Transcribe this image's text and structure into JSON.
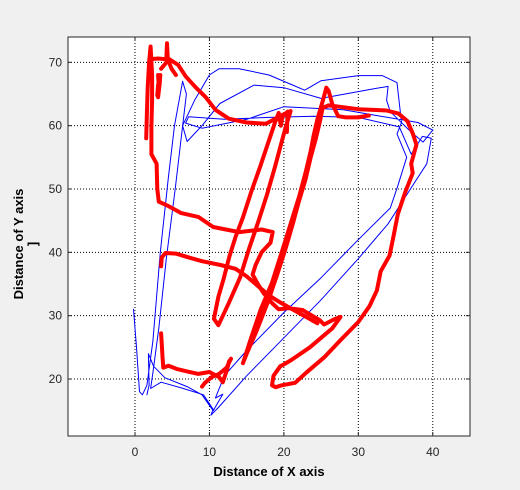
{
  "chart_data": {
    "type": "line",
    "title": "",
    "xlabel": "Distance of X axis",
    "ylabel": "Distance of Y axis",
    "ylabel_extra": "]",
    "xlim": [
      -9,
      45
    ],
    "ylim": [
      11,
      74
    ],
    "xticks": [
      0,
      10,
      20,
      30,
      40
    ],
    "yticks": [
      20,
      30,
      40,
      50,
      60,
      70
    ],
    "grid": true,
    "legend": "none",
    "series": [
      {
        "color": "#0000ff",
        "width": 1,
        "points": [
          [
            -0.2,
            31
          ],
          [
            0.2,
            25
          ],
          [
            0.6,
            18
          ],
          [
            1,
            17.5
          ],
          [
            1.6,
            19
          ],
          [
            2.4,
            26
          ],
          [
            3.4,
            40
          ],
          [
            4.5,
            52
          ],
          [
            5.3,
            60
          ],
          [
            6.4,
            67
          ],
          [
            6.9,
            65
          ],
          [
            6.3,
            59
          ],
          [
            5.4,
            50
          ],
          [
            4.2,
            39
          ],
          [
            3.2,
            28
          ],
          [
            2.4,
            21
          ],
          [
            2.1,
            18.5
          ],
          [
            3.5,
            19.5
          ],
          [
            6.5,
            18.5
          ],
          [
            9.2,
            17.5
          ],
          [
            10.5,
            15.2
          ],
          [
            10.2,
            14.3
          ],
          [
            11.2,
            15.5
          ],
          [
            15,
            20.5
          ],
          [
            20,
            26.5
          ],
          [
            25,
            32.5
          ],
          [
            30,
            39
          ],
          [
            34,
            44.5
          ],
          [
            37,
            50
          ],
          [
            39.2,
            54
          ],
          [
            39.8,
            58
          ],
          [
            38.6,
            58.3
          ],
          [
            37.1,
            55.5
          ],
          [
            35.5,
            59.8
          ],
          [
            30,
            61.3
          ],
          [
            24,
            61.5
          ],
          [
            18,
            61.3
          ],
          [
            12,
            61
          ],
          [
            7.2,
            61.4
          ],
          [
            6.8,
            60.4
          ],
          [
            9,
            59.6
          ],
          [
            15,
            61
          ],
          [
            20,
            63
          ],
          [
            28,
            62.5
          ],
          [
            33,
            61.5
          ],
          [
            38,
            60.5
          ],
          [
            40,
            59.3
          ],
          [
            38.7,
            57.4
          ],
          [
            36.9,
            59.2
          ],
          [
            34.3,
            62.2
          ],
          [
            33.8,
            64
          ],
          [
            34,
            66.2
          ],
          [
            32,
            65.8
          ],
          [
            25,
            64.3
          ],
          [
            20,
            66
          ],
          [
            16,
            66.4
          ],
          [
            11.4,
            63.5
          ],
          [
            9,
            60
          ],
          [
            7,
            57.5
          ],
          [
            6.4,
            60
          ],
          [
            8,
            64
          ],
          [
            10,
            68
          ],
          [
            11.3,
            69
          ],
          [
            14,
            69
          ],
          [
            18,
            68
          ],
          [
            21,
            66.5
          ],
          [
            22.8,
            65.6
          ],
          [
            25,
            67.1
          ],
          [
            30,
            67.9
          ],
          [
            33.2,
            67.9
          ],
          [
            35.2,
            66.8
          ],
          [
            35.8,
            60.5
          ],
          [
            35.2,
            58.7
          ],
          [
            36.5,
            55
          ],
          [
            35.3,
            50.5
          ],
          [
            34.3,
            47
          ],
          [
            30,
            42
          ],
          [
            25,
            36
          ],
          [
            20,
            30.5
          ],
          [
            15,
            24.5
          ],
          [
            12,
            20.5
          ],
          [
            10.8,
            17
          ],
          [
            11.8,
            17.6
          ],
          [
            10.5,
            15
          ],
          [
            9,
            17.5
          ],
          [
            7,
            18.8
          ],
          [
            4,
            20.2
          ],
          [
            2.5,
            22
          ],
          [
            1.8,
            24
          ],
          [
            1.9,
            19
          ],
          [
            1.6,
            17.5
          ]
        ]
      },
      {
        "color": "#ff0000",
        "width": 4,
        "points": [
          [
            1.5,
            58
          ],
          [
            1.6,
            62
          ],
          [
            1.7,
            66
          ],
          [
            1.9,
            70
          ],
          [
            2.1,
            72.5
          ],
          [
            2.3,
            68
          ],
          [
            2.3,
            64
          ],
          [
            2.2,
            60
          ],
          [
            2.2,
            55.5
          ],
          [
            2.9,
            54
          ],
          [
            3,
            50
          ],
          [
            3.2,
            48
          ],
          [
            4.5,
            47.3
          ],
          [
            6.2,
            46.2
          ],
          [
            8.5,
            45.6
          ],
          [
            10.5,
            44
          ],
          [
            14,
            43.2
          ],
          [
            17,
            43.6
          ],
          [
            18.5,
            43.2
          ],
          [
            18.2,
            41.5
          ],
          [
            17,
            40
          ],
          [
            16.2,
            38
          ],
          [
            15.8,
            36.5
          ],
          [
            16.5,
            35
          ],
          [
            17.3,
            33.5
          ],
          [
            18.4,
            32
          ],
          [
            19.3,
            31
          ],
          [
            20.5,
            31.2
          ],
          [
            22.5,
            30.9
          ],
          [
            24.8,
            29.3
          ],
          [
            25.4,
            28.6
          ],
          [
            26.7,
            29.4
          ],
          [
            27.6,
            29.8
          ],
          [
            26.5,
            28
          ],
          [
            25,
            26.5
          ],
          [
            23.5,
            25
          ],
          [
            21,
            23
          ],
          [
            20,
            22.3
          ],
          [
            19.5,
            22
          ],
          [
            18.6,
            20.5
          ],
          [
            18.4,
            19
          ],
          [
            18.9,
            18.7
          ],
          [
            19.7,
            19
          ],
          [
            21.5,
            19.4
          ],
          [
            23,
            21
          ],
          [
            25.5,
            23.5
          ],
          [
            27.5,
            26
          ],
          [
            30,
            29
          ],
          [
            31.5,
            31.5
          ],
          [
            32.5,
            34
          ],
          [
            33,
            37
          ],
          [
            34.2,
            39.5
          ],
          [
            34.8,
            43
          ],
          [
            35.3,
            46
          ],
          [
            36.3,
            49.5
          ],
          [
            37.3,
            52.5
          ],
          [
            37.1,
            54
          ],
          [
            37.8,
            57
          ],
          [
            37.3,
            58.8
          ],
          [
            36.6,
            60.7
          ],
          [
            35.4,
            61.9
          ],
          [
            33.8,
            62.4
          ],
          [
            30,
            62.6
          ],
          [
            26,
            63.2
          ],
          [
            25.2,
            62.8
          ],
          [
            24.9,
            61
          ],
          [
            24.3,
            58
          ],
          [
            23.6,
            55
          ],
          [
            22.9,
            51.5
          ],
          [
            22,
            48
          ],
          [
            21.2,
            44.5
          ],
          [
            20.2,
            40.5
          ],
          [
            19.1,
            36.5
          ],
          [
            17.8,
            32
          ],
          [
            16.3,
            27.5
          ],
          [
            15,
            24
          ],
          [
            14.5,
            22.5
          ],
          [
            14.7,
            23.2
          ],
          [
            15.6,
            26.5
          ],
          [
            16.9,
            31
          ],
          [
            18.4,
            35.2
          ],
          [
            19.7,
            40
          ],
          [
            20.9,
            44.5
          ],
          [
            22.1,
            49
          ],
          [
            23,
            53
          ],
          [
            23.6,
            56
          ],
          [
            24,
            58.5
          ],
          [
            24.5,
            61
          ],
          [
            25.3,
            64.2
          ],
          [
            25.7,
            66
          ],
          [
            26,
            65.5
          ],
          [
            26.5,
            63.4
          ],
          [
            27.3,
            61.5
          ],
          [
            28.3,
            61.3
          ],
          [
            30,
            61.3
          ],
          [
            31.4,
            61.6
          ]
        ]
      },
      {
        "color": "#ff0000",
        "width": 4,
        "points": [
          [
            3.5,
            69
          ],
          [
            4.6,
            70.5
          ],
          [
            5.8,
            69.6
          ],
          [
            6.8,
            67.8
          ],
          [
            8.2,
            66
          ],
          [
            9.5,
            64.5
          ],
          [
            10.8,
            62.5
          ],
          [
            12.6,
            61.1
          ],
          [
            15,
            60.5
          ],
          [
            17.6,
            60.3
          ],
          [
            19.8,
            61.7
          ],
          [
            20.9,
            62.3
          ],
          [
            20.3,
            60
          ],
          [
            19.6,
            57
          ],
          [
            18.8,
            53.5
          ],
          [
            17.7,
            49
          ],
          [
            16.6,
            45
          ],
          [
            15.3,
            40.5
          ],
          [
            14.1,
            36
          ],
          [
            12.6,
            32
          ],
          [
            11.2,
            28.5
          ],
          [
            10.6,
            29.5
          ],
          [
            11.2,
            33
          ],
          [
            11.9,
            35.8
          ],
          [
            12.7,
            39.4
          ],
          [
            13.5,
            42.4
          ],
          [
            14.5,
            45.5
          ],
          [
            15.6,
            49.5
          ],
          [
            16.8,
            53.5
          ],
          [
            17.8,
            57
          ],
          [
            18.8,
            60.5
          ],
          [
            19.3,
            62
          ],
          [
            19.6,
            60
          ],
          [
            19.8,
            61.5
          ],
          [
            20.5,
            62.2
          ],
          [
            20.4,
            59
          ]
        ]
      },
      {
        "color": "#ff0000",
        "width": 4,
        "points": [
          [
            2,
            70.5
          ],
          [
            3.1,
            70.6
          ],
          [
            4.2,
            70.5
          ],
          [
            4.3,
            73
          ],
          [
            4.4,
            70.5
          ],
          [
            4.9,
            69
          ],
          [
            5.5,
            68
          ]
        ]
      },
      {
        "color": "#ff0000",
        "width": 4,
        "points": [
          [
            3.5,
            37.8
          ],
          [
            3.6,
            39.2
          ],
          [
            4.1,
            39.9
          ],
          [
            5.5,
            39.8
          ],
          [
            7.2,
            39.2
          ],
          [
            9,
            38.6
          ],
          [
            11.5,
            38
          ],
          [
            13.5,
            37.4
          ],
          [
            15,
            36.2
          ],
          [
            16.7,
            34.5
          ],
          [
            18,
            33.2
          ],
          [
            19.5,
            32.1
          ],
          [
            21.3,
            30.9
          ],
          [
            23.3,
            29.6
          ],
          [
            24.5,
            28.8
          ]
        ]
      },
      {
        "color": "#ff0000",
        "width": 4,
        "points": [
          [
            3.5,
            27.2
          ],
          [
            3.6,
            25.5
          ],
          [
            3.7,
            23.5
          ],
          [
            3.8,
            21.8
          ],
          [
            4.5,
            22.1
          ],
          [
            5.6,
            21.6
          ],
          [
            7,
            21.2
          ],
          [
            8.5,
            20.8
          ],
          [
            10,
            21.1
          ],
          [
            11.3,
            20.3
          ],
          [
            11.8,
            19.5
          ],
          [
            12.1,
            20.6
          ],
          [
            12.4,
            21.6
          ],
          [
            12.6,
            22.7
          ],
          [
            12.9,
            23.2
          ],
          [
            12.3,
            21.8
          ],
          [
            11.3,
            20.8
          ],
          [
            10.3,
            20.3
          ],
          [
            9.4,
            19.4
          ],
          [
            9,
            18.8
          ]
        ]
      },
      {
        "color": "#ff0000",
        "width": 4,
        "points": [
          [
            3.1,
            68
          ],
          [
            3.2,
            66
          ],
          [
            3.1,
            64.5
          ],
          [
            3.3,
            66.5
          ],
          [
            3.4,
            68
          ],
          [
            3.1,
            66.4
          ],
          [
            3,
            64.8
          ]
        ]
      }
    ]
  }
}
